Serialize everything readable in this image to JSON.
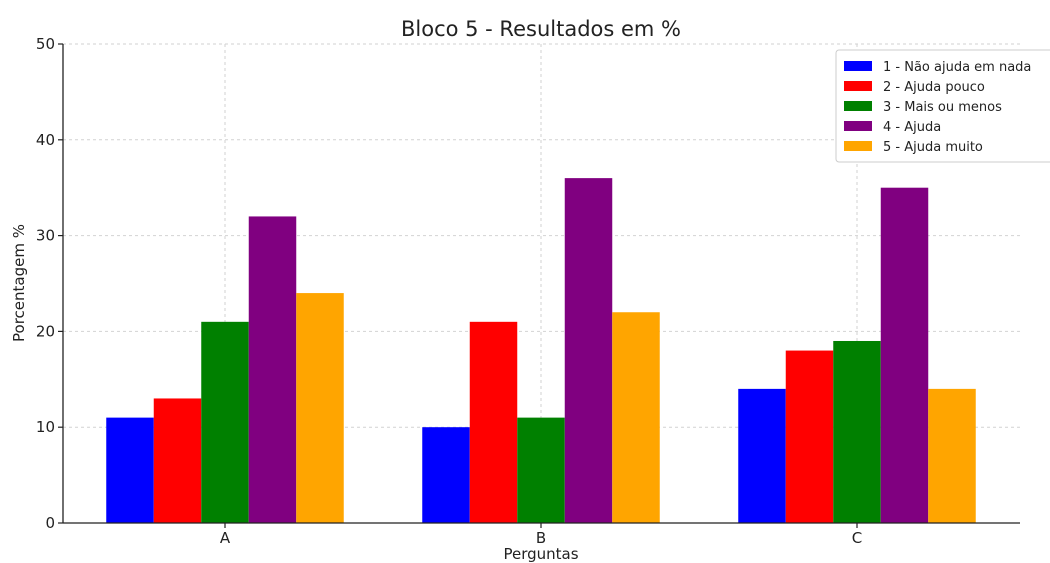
{
  "chart_data": {
    "type": "bar",
    "title": "Bloco 5 - Resultados em %",
    "xlabel": "Perguntas",
    "ylabel": "Porcentagem %",
    "categories": [
      "A",
      "B",
      "C"
    ],
    "ylim": [
      0,
      50
    ],
    "yticks": [
      0,
      10,
      20,
      30,
      40,
      50
    ],
    "grid": true,
    "legend_position": "top-right",
    "series": [
      {
        "name": "1 - Não ajuda em nada",
        "color": "#0000ff",
        "values": [
          11,
          10,
          14
        ]
      },
      {
        "name": "2 - Ajuda pouco",
        "color": "#ff0000",
        "values": [
          13,
          21,
          18
        ]
      },
      {
        "name": "3 - Mais ou menos",
        "color": "#008000",
        "values": [
          21,
          11,
          19
        ]
      },
      {
        "name": "4 - Ajuda",
        "color": "#800080",
        "values": [
          32,
          36,
          35
        ]
      },
      {
        "name": "5 - Ajuda muito",
        "color": "#ffa500",
        "values": [
          24,
          22,
          14
        ]
      }
    ]
  }
}
